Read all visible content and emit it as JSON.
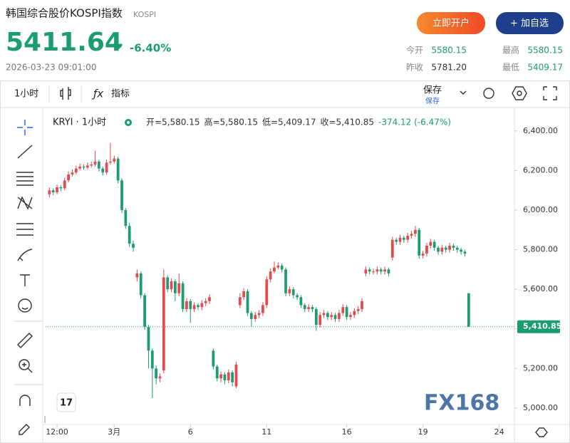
{
  "header": {
    "title": "韩国综合股价KOSPI指数",
    "code": "KOSPI",
    "price": "5411.64",
    "change": "-6.40%",
    "time": "2026-03-23 09:01:00",
    "buttons": [
      "立即开户",
      "+ 加自选"
    ],
    "stats": [
      {
        "label": "今开",
        "value": "5580.15"
      },
      {
        "label": "最高",
        "value": "5580.15"
      },
      {
        "label": "昨收",
        "value": "5781.20"
      },
      {
        "label": "最低",
        "value": "5409.17"
      }
    ]
  },
  "toolbar": {
    "interval": "1小时",
    "indicators": "指标",
    "save": "保存",
    "save_sub": "保存"
  },
  "legend": {
    "symbol": "KRYI · 1小时",
    "items": [
      "开=5,580.15",
      "高=5,580.15",
      "低=5,409.17",
      "收=5,410.85",
      "-374.12 (-6.47%)"
    ]
  },
  "watermark": "FX168",
  "chart_data": {
    "type": "candlestick",
    "up_color": "#e5484d",
    "down_color": "#1b9c72",
    "xlim": [
      -1,
      122
    ],
    "ylim": [
      4917,
      6518
    ],
    "xticks": [
      {
        "value": 2,
        "label": "12:00"
      },
      {
        "value": 17,
        "label": "3月"
      },
      {
        "value": 37,
        "label": "6"
      },
      {
        "value": 57,
        "label": "11"
      },
      {
        "value": 78,
        "label": "16"
      },
      {
        "value": 98,
        "label": "19"
      },
      {
        "value": 118,
        "label": "24"
      }
    ],
    "yticks": [
      {
        "value": 5000,
        "label": "5,000.00"
      },
      {
        "value": 5200,
        "label": "5,200.00"
      },
      {
        "value": 5400,
        "label": "5,400.00"
      },
      {
        "value": 5600,
        "label": "5,600.00"
      },
      {
        "value": 5800,
        "label": "5,800.00"
      },
      {
        "value": 6000,
        "label": "6,000.00"
      },
      {
        "value": 6200,
        "label": "6,200.00"
      },
      {
        "value": 6400,
        "label": "6,400.00"
      }
    ],
    "last_price": {
      "value": 5410.85,
      "label": "5,410.85"
    },
    "open": [
      6080,
      6100,
      6090,
      6115,
      6110,
      6150,
      6180,
      6190,
      6210,
      6220,
      6215,
      6225,
      6230,
      6245,
      6210,
      6190,
      6240,
      6245,
      6260,
      6150,
      6000,
      5920,
      5830,
      5660,
      5680,
      5570,
      5410,
      5290,
      5200,
      5150,
      5190,
      5660,
      5600,
      5640,
      5580,
      5630,
      5500,
      5540,
      5500,
      5520,
      5510,
      5530,
      5540,
      5290,
      5210,
      5150,
      5170,
      5140,
      5180,
      5110,
      5520,
      5560,
      5590,
      5480,
      5450,
      5470,
      5480,
      5520,
      5650,
      5690,
      5710,
      5720,
      5700,
      5580,
      5600,
      5570,
      5560,
      5520,
      5500,
      5510,
      5500,
      5420,
      5470,
      5480,
      5460,
      5470,
      5450,
      5480,
      5510,
      5460,
      5470,
      5490,
      5500,
      5680,
      5700,
      5690,
      5690,
      5700,
      5690,
      5700,
      5760,
      5850,
      5840,
      5860,
      5850,
      5870,
      5880,
      5900,
      5770,
      5780,
      5820,
      5840,
      5810,
      5790,
      5810,
      5800,
      5820,
      5810,
      5800,
      5790,
      5580.15
    ],
    "high": [
      6115,
      6110,
      6130,
      6125,
      6165,
      6195,
      6205,
      6225,
      6235,
      6230,
      6240,
      6245,
      6300,
      6255,
      6220,
      6255,
      6340,
      6275,
      6270,
      6160,
      6010,
      5935,
      5845,
      5700,
      5690,
      5580,
      5420,
      5300,
      5215,
      5175,
      5700,
      5670,
      5655,
      5650,
      5680,
      5640,
      5555,
      5550,
      5535,
      5530,
      5545,
      5555,
      5575,
      5300,
      5220,
      5185,
      5180,
      5195,
      5190,
      5235,
      5580,
      5605,
      5600,
      5490,
      5485,
      5495,
      5535,
      5665,
      5705,
      5740,
      5735,
      5730,
      5710,
      5615,
      5610,
      5580,
      5570,
      5530,
      5525,
      5520,
      5510,
      5485,
      5495,
      5490,
      5485,
      5480,
      5495,
      5525,
      5520,
      5485,
      5505,
      5515,
      5555,
      5715,
      5710,
      5705,
      5715,
      5710,
      5715,
      5710,
      5865,
      5860,
      5875,
      5870,
      5885,
      5895,
      5920,
      5910,
      5795,
      5835,
      5855,
      5850,
      5820,
      5825,
      5820,
      5835,
      5830,
      5820,
      5810,
      5800,
      5580.15
    ],
    "low": [
      6065,
      6075,
      6080,
      6095,
      6100,
      6140,
      6170,
      6180,
      6200,
      6205,
      6205,
      6215,
      6220,
      6195,
      6175,
      6180,
      6230,
      6235,
      6135,
      5985,
      5905,
      5815,
      5790,
      5640,
      5555,
      5395,
      5200,
      5050,
      5120,
      5130,
      5175,
      5585,
      5585,
      5540,
      5565,
      5485,
      5485,
      5430,
      5485,
      5495,
      5495,
      5515,
      5525,
      5195,
      5135,
      5130,
      5120,
      5125,
      5110,
      5100,
      5505,
      5545,
      5465,
      5410,
      5435,
      5455,
      5465,
      5505,
      5635,
      5680,
      5700,
      5685,
      5565,
      5565,
      5555,
      5545,
      5505,
      5485,
      5485,
      5485,
      5390,
      5405,
      5455,
      5445,
      5445,
      5435,
      5435,
      5465,
      5445,
      5445,
      5455,
      5475,
      5485,
      5665,
      5675,
      5675,
      5675,
      5675,
      5675,
      5665,
      5745,
      5825,
      5825,
      5835,
      5835,
      5855,
      5865,
      5755,
      5755,
      5765,
      5805,
      5795,
      5775,
      5775,
      5785,
      5785,
      5795,
      5785,
      5775,
      5765,
      5409.17
    ],
    "close": [
      6100,
      6090,
      6115,
      6110,
      6150,
      6180,
      6190,
      6210,
      6220,
      6215,
      6225,
      6230,
      6245,
      6210,
      6190,
      6240,
      6245,
      6260,
      6150,
      6000,
      5920,
      5830,
      5810,
      5680,
      5570,
      5410,
      5290,
      5200,
      5150,
      5160,
      5660,
      5600,
      5640,
      5580,
      5630,
      5500,
      5540,
      5500,
      5520,
      5510,
      5530,
      5540,
      5560,
      5210,
      5150,
      5170,
      5140,
      5180,
      5130,
      5220,
      5560,
      5590,
      5480,
      5450,
      5470,
      5480,
      5520,
      5650,
      5690,
      5710,
      5720,
      5700,
      5580,
      5600,
      5570,
      5560,
      5520,
      5500,
      5510,
      5500,
      5420,
      5470,
      5480,
      5460,
      5470,
      5450,
      5480,
      5510,
      5460,
      5470,
      5490,
      5500,
      5540,
      5700,
      5690,
      5690,
      5700,
      5690,
      5700,
      5680,
      5850,
      5840,
      5860,
      5850,
      5870,
      5880,
      5900,
      5770,
      5780,
      5820,
      5840,
      5810,
      5790,
      5810,
      5800,
      5820,
      5810,
      5800,
      5790,
      5780,
      5410.85
    ]
  }
}
